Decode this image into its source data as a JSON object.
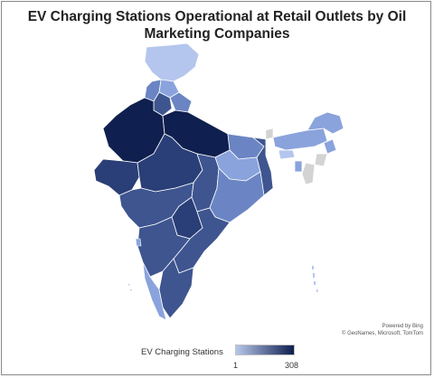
{
  "title": "EV Charging Stations Operational at Retail Outlets by Oil Marketing Companies",
  "attribution": {
    "line1": "Powered by Bing",
    "line2": "© GeoNames, Microsoft, TomTom"
  },
  "legend": {
    "label": "EV Charging Stations",
    "min": "1",
    "max": "308",
    "min_color": "#b7c7ea",
    "max_color": "#0e1e4e"
  },
  "colors": {
    "nodata": "#d3d3d3",
    "boundary": "#ffffff",
    "dark": "#0f1f4f",
    "mid_dark": "#2a3f77",
    "mid": "#3e5590",
    "light": "#6b85c4",
    "lighter": "#8aa3dc",
    "palest": "#b4c6ee"
  }
}
